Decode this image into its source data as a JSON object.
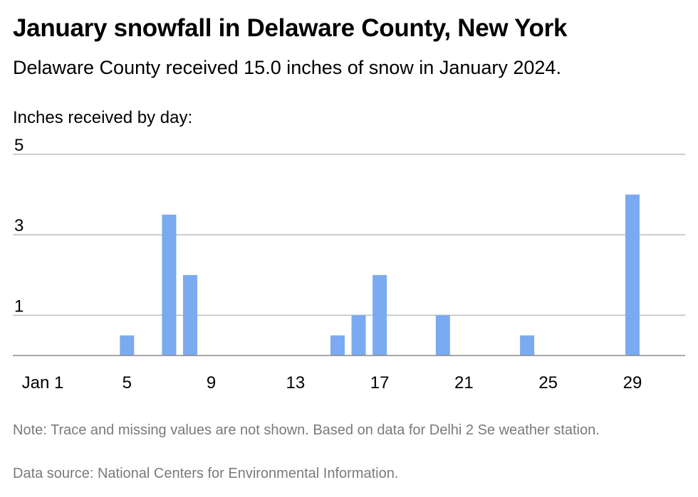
{
  "title": "January snowfall in Delaware County, New York",
  "subtitle": "Delaware County received 15.0 inches of snow in January 2024.",
  "note": "Note: Trace and missing values are not shown. Based on data for Delhi 2 Se weather station.",
  "source": "Data source: National Centers for Environmental Information.",
  "chart_data": {
    "type": "bar",
    "title": "January snowfall in Delaware County, New York",
    "ylabel": "Inches received by day:",
    "xlabel": "",
    "x_tick_labels": [
      "Jan 1",
      "5",
      "9",
      "13",
      "17",
      "21",
      "25",
      "29"
    ],
    "x_tick_days": [
      1,
      5,
      9,
      13,
      17,
      21,
      25,
      29
    ],
    "y_ticks": [
      1,
      3,
      5
    ],
    "ylim": [
      0,
      5
    ],
    "xlim": [
      1,
      31
    ],
    "grid": true,
    "bar_color": "#7aaaf0",
    "days": [
      5,
      7,
      8,
      15,
      16,
      17,
      20,
      24,
      29
    ],
    "values": [
      0.5,
      3.5,
      2,
      0.5,
      1,
      2,
      1,
      0.5,
      4
    ]
  }
}
